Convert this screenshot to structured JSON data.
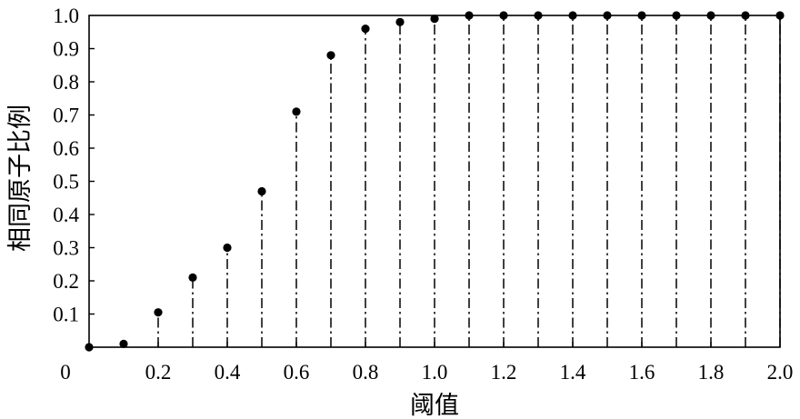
{
  "chart_data": {
    "type": "scatter",
    "stems": true,
    "xlabel": "阈值",
    "ylabel": "相同原子比例",
    "x": [
      0,
      0.1,
      0.2,
      0.3,
      0.4,
      0.5,
      0.6,
      0.7,
      0.8,
      0.9,
      1.0,
      1.1,
      1.2,
      1.3,
      1.4,
      1.5,
      1.6,
      1.7,
      1.8,
      1.9,
      2.0
    ],
    "y": [
      0,
      0.01,
      0.105,
      0.21,
      0.3,
      0.47,
      0.71,
      0.88,
      0.96,
      0.98,
      0.99,
      1.0,
      1.0,
      1.0,
      1.0,
      1.0,
      1.0,
      1.0,
      1.0,
      1.0,
      1.0
    ],
    "xlim": [
      0,
      2.0
    ],
    "ylim": [
      0,
      1.0
    ],
    "xticks": [
      0,
      0.2,
      0.4,
      0.6,
      0.8,
      1.0,
      1.2,
      1.4,
      1.6,
      1.8,
      2.0
    ],
    "xtick_labels": [
      "0",
      "0.2",
      "0.4",
      "0.6",
      "0.8",
      "1.0",
      "1.2",
      "1.4",
      "1.6",
      "1.8",
      "2.0"
    ],
    "yticks": [
      0.1,
      0.2,
      0.3,
      0.4,
      0.5,
      0.6,
      0.7,
      0.8,
      0.9,
      1.0
    ],
    "ytick_labels": [
      "0.1",
      "0.2",
      "0.3",
      "0.4",
      "0.5",
      "0.6",
      "0.7",
      "0.8",
      "0.9",
      "1.0"
    ],
    "grid": false,
    "colors": {
      "marker": "#000000",
      "stem": "#000000",
      "axes": "#000000",
      "background": "#ffffff"
    }
  }
}
